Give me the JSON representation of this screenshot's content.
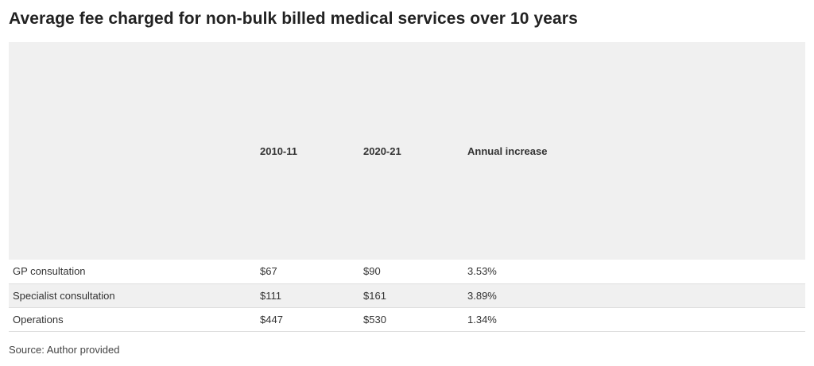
{
  "title": "Average fee charged for non-bulk billed medical services over 10 years",
  "table": {
    "headers": [
      "",
      "2010-11",
      "2020-21",
      "Annual increase"
    ],
    "rows": [
      [
        "GP consultation",
        "$67",
        "$90",
        "3.53%"
      ],
      [
        "Specialist consultation",
        "$111",
        "$161",
        "3.89%"
      ],
      [
        "Operations",
        "$447",
        "$530",
        "1.34%"
      ]
    ]
  },
  "source": "Source: Author provided",
  "colors": {
    "header_bg": "#f0f0f0",
    "alt_row_bg": "#f0f0f0",
    "row_border": "#dedede",
    "text": "#333333"
  }
}
